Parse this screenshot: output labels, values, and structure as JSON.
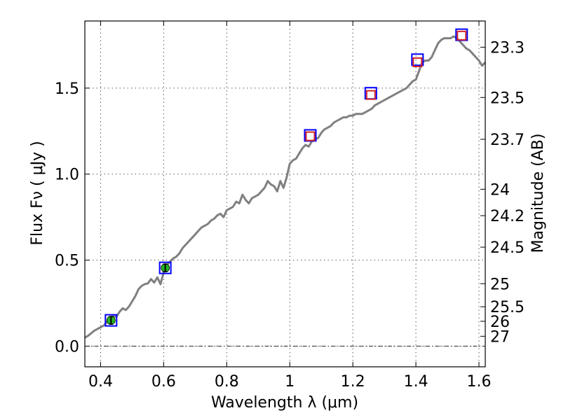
{
  "chart_data": {
    "type": "line",
    "xlabel": "Wavelength  λ (μm)",
    "ylabel": "Flux  Fν  ( μJy )",
    "y2label": "Magnitude (AB)",
    "xlim": [
      0.35,
      1.62
    ],
    "ylim": [
      -0.12,
      1.89
    ],
    "grid": true,
    "xticks": [
      {
        "value": 0.4,
        "label": "0.4"
      },
      {
        "value": 0.6,
        "label": "0.6"
      },
      {
        "value": 0.8,
        "label": "0.8"
      },
      {
        "value": 1.0,
        "label": "1"
      },
      {
        "value": 1.2,
        "label": "1.2"
      },
      {
        "value": 1.4,
        "label": "1.4"
      },
      {
        "value": 1.6,
        "label": "1.6"
      }
    ],
    "yticks": [
      {
        "value": 0.0,
        "label": "0.0"
      },
      {
        "value": 0.5,
        "label": "0.5"
      },
      {
        "value": 1.0,
        "label": "1.0"
      },
      {
        "value": 1.5,
        "label": "1.5"
      }
    ],
    "y2ticks": [
      {
        "mag": 23.3,
        "label": "23.3"
      },
      {
        "mag": 23.5,
        "label": "23.5"
      },
      {
        "mag": 23.7,
        "label": "23.7"
      },
      {
        "mag": 24.0,
        "label": "24"
      },
      {
        "mag": 24.2,
        "label": "24.2"
      },
      {
        "mag": 24.5,
        "label": "24.5"
      },
      {
        "mag": 25.0,
        "label": "25"
      },
      {
        "mag": 25.5,
        "label": "25.5"
      },
      {
        "mag": 26.0,
        "label": "26"
      },
      {
        "mag": 27.0,
        "label": "27"
      }
    ],
    "zero_line": 0.0,
    "series": [
      {
        "kind": "line",
        "color": "#808080",
        "points": [
          [
            0.35,
            0.05
          ],
          [
            0.36,
            0.06
          ],
          [
            0.37,
            0.075
          ],
          [
            0.38,
            0.09
          ],
          [
            0.39,
            0.1
          ],
          [
            0.4,
            0.11
          ],
          [
            0.41,
            0.12
          ],
          [
            0.42,
            0.14
          ],
          [
            0.43,
            0.165
          ],
          [
            0.44,
            0.175
          ],
          [
            0.45,
            0.17
          ],
          [
            0.46,
            0.2
          ],
          [
            0.47,
            0.22
          ],
          [
            0.48,
            0.21
          ],
          [
            0.49,
            0.23
          ],
          [
            0.5,
            0.26
          ],
          [
            0.51,
            0.29
          ],
          [
            0.52,
            0.33
          ],
          [
            0.53,
            0.35
          ],
          [
            0.54,
            0.36
          ],
          [
            0.55,
            0.365
          ],
          [
            0.56,
            0.39
          ],
          [
            0.57,
            0.37
          ],
          [
            0.58,
            0.4
          ],
          [
            0.59,
            0.36
          ],
          [
            0.6,
            0.43
          ],
          [
            0.61,
            0.47
          ],
          [
            0.62,
            0.49
          ],
          [
            0.63,
            0.51
          ],
          [
            0.64,
            0.52
          ],
          [
            0.65,
            0.54
          ],
          [
            0.66,
            0.57
          ],
          [
            0.67,
            0.59
          ],
          [
            0.68,
            0.61
          ],
          [
            0.69,
            0.63
          ],
          [
            0.7,
            0.65
          ],
          [
            0.71,
            0.67
          ],
          [
            0.72,
            0.69
          ],
          [
            0.73,
            0.7
          ],
          [
            0.74,
            0.71
          ],
          [
            0.75,
            0.73
          ],
          [
            0.76,
            0.74
          ],
          [
            0.77,
            0.76
          ],
          [
            0.78,
            0.77
          ],
          [
            0.79,
            0.75
          ],
          [
            0.8,
            0.79
          ],
          [
            0.81,
            0.8
          ],
          [
            0.82,
            0.81
          ],
          [
            0.83,
            0.84
          ],
          [
            0.84,
            0.83
          ],
          [
            0.85,
            0.88
          ],
          [
            0.86,
            0.85
          ],
          [
            0.87,
            0.83
          ],
          [
            0.88,
            0.86
          ],
          [
            0.89,
            0.87
          ],
          [
            0.9,
            0.88
          ],
          [
            0.91,
            0.9
          ],
          [
            0.92,
            0.92
          ],
          [
            0.93,
            0.96
          ],
          [
            0.94,
            0.94
          ],
          [
            0.95,
            0.93
          ],
          [
            0.96,
            0.9
          ],
          [
            0.97,
            0.96
          ],
          [
            0.98,
            0.92
          ],
          [
            0.99,
            0.98
          ],
          [
            1.0,
            1.06
          ],
          [
            1.01,
            1.08
          ],
          [
            1.02,
            1.09
          ],
          [
            1.03,
            1.12
          ],
          [
            1.04,
            1.15
          ],
          [
            1.05,
            1.17
          ],
          [
            1.06,
            1.16
          ],
          [
            1.07,
            1.19
          ],
          [
            1.08,
            1.2
          ],
          [
            1.09,
            1.21
          ],
          [
            1.1,
            1.24
          ],
          [
            1.11,
            1.26
          ],
          [
            1.12,
            1.27
          ],
          [
            1.13,
            1.28
          ],
          [
            1.14,
            1.3
          ],
          [
            1.15,
            1.31
          ],
          [
            1.16,
            1.32
          ],
          [
            1.17,
            1.33
          ],
          [
            1.18,
            1.33
          ],
          [
            1.19,
            1.34
          ],
          [
            1.2,
            1.34
          ],
          [
            1.21,
            1.35
          ],
          [
            1.22,
            1.35
          ],
          [
            1.23,
            1.35
          ],
          [
            1.24,
            1.36
          ],
          [
            1.25,
            1.37
          ],
          [
            1.26,
            1.38
          ],
          [
            1.27,
            1.4
          ],
          [
            1.28,
            1.41
          ],
          [
            1.29,
            1.42
          ],
          [
            1.3,
            1.43
          ],
          [
            1.31,
            1.44
          ],
          [
            1.32,
            1.45
          ],
          [
            1.33,
            1.46
          ],
          [
            1.34,
            1.47
          ],
          [
            1.35,
            1.48
          ],
          [
            1.36,
            1.49
          ],
          [
            1.37,
            1.5
          ],
          [
            1.38,
            1.52
          ],
          [
            1.39,
            1.54
          ],
          [
            1.4,
            1.55
          ],
          [
            1.41,
            1.6
          ],
          [
            1.42,
            1.65
          ],
          [
            1.43,
            1.66
          ],
          [
            1.44,
            1.66
          ],
          [
            1.45,
            1.68
          ],
          [
            1.46,
            1.72
          ],
          [
            1.47,
            1.76
          ],
          [
            1.48,
            1.78
          ],
          [
            1.49,
            1.79
          ],
          [
            1.5,
            1.79
          ],
          [
            1.51,
            1.79
          ],
          [
            1.52,
            1.8
          ],
          [
            1.53,
            1.79
          ],
          [
            1.54,
            1.77
          ],
          [
            1.55,
            1.75
          ],
          [
            1.56,
            1.73
          ],
          [
            1.57,
            1.72
          ],
          [
            1.58,
            1.7
          ],
          [
            1.59,
            1.68
          ],
          [
            1.6,
            1.66
          ],
          [
            1.61,
            1.63
          ],
          [
            1.62,
            1.65
          ]
        ]
      },
      {
        "kind": "markers",
        "marker": "open-square",
        "color": "#0000ff",
        "points": [
          [
            0.433,
            0.15
          ],
          [
            0.605,
            0.455
          ],
          [
            1.065,
            1.225
          ],
          [
            1.257,
            1.47
          ],
          [
            1.405,
            1.665
          ],
          [
            1.545,
            1.81
          ]
        ]
      },
      {
        "kind": "markers",
        "marker": "open-square",
        "color": "#d62728",
        "points": [
          [
            1.065,
            1.22
          ],
          [
            1.257,
            1.46
          ],
          [
            1.405,
            1.65
          ],
          [
            1.545,
            1.805
          ]
        ]
      },
      {
        "kind": "errorbar",
        "marker": "filled-circle",
        "color": "#22b522",
        "points": [
          {
            "x": 0.433,
            "y": 0.15,
            "err": 0.022
          },
          {
            "x": 0.605,
            "y": 0.455,
            "err": 0.022
          }
        ]
      }
    ]
  }
}
